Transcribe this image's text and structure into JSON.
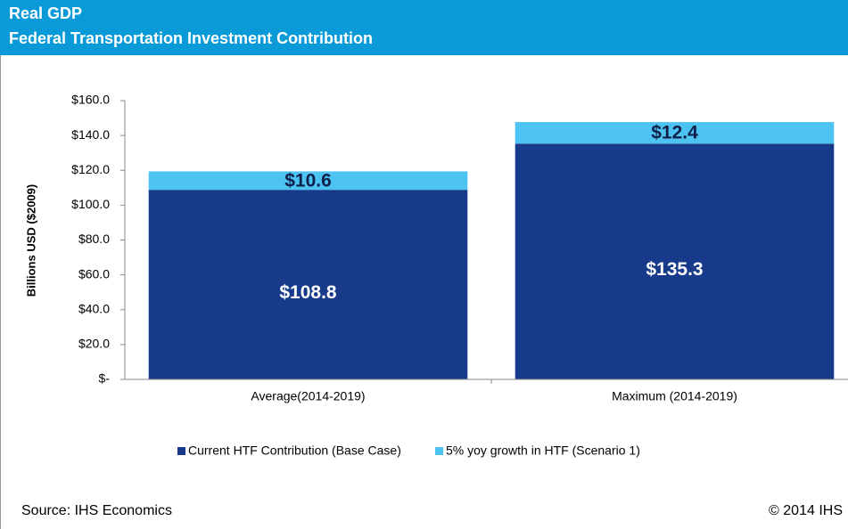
{
  "chart_data": {
    "type": "bar",
    "stacked": true,
    "title": "Real GDP",
    "subtitle": "Federal Transportation Investment Contribution",
    "ylabel": "Billions USD ($2009)",
    "categories": [
      "Average(2014-2019)",
      "Maximum (2014-2019)"
    ],
    "series": [
      {
        "name": "Current HTF Contribution (Base Case)",
        "color": "#173a8a",
        "values": [
          108.8,
          135.3
        ],
        "value_labels": [
          "$108.8",
          "$135.3"
        ]
      },
      {
        "name": "5% yoy growth in HTF  (Scenario 1)",
        "color": "#4dc3f1",
        "values": [
          10.6,
          12.4
        ],
        "value_labels": [
          "$10.6",
          "$12.4"
        ]
      }
    ],
    "ylim": [
      0,
      160
    ],
    "yticks": [
      {
        "value": 0,
        "label": "$-"
      },
      {
        "value": 20,
        "label": "$20.0"
      },
      {
        "value": 40,
        "label": "$40.0"
      },
      {
        "value": 60,
        "label": "$60.0"
      },
      {
        "value": 80,
        "label": "$80.0"
      },
      {
        "value": 100,
        "label": "$100.0"
      },
      {
        "value": 120,
        "label": "$120.0"
      },
      {
        "value": 140,
        "label": "$140.0"
      },
      {
        "value": 160,
        "label": "$160.0"
      }
    ],
    "grid": false,
    "legend": "bottom",
    "source": "Source: IHS Economics",
    "copyright": "© 2014 IHS"
  }
}
